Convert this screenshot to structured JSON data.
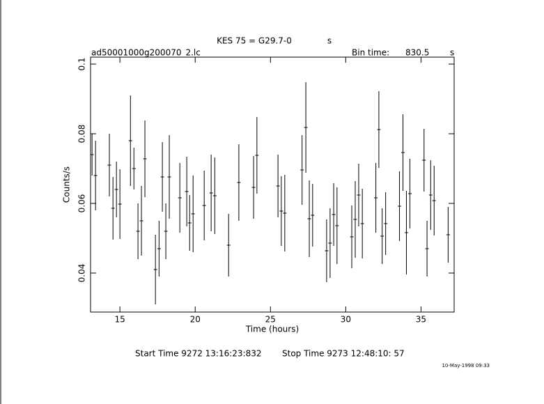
{
  "chart_data": {
    "type": "errorbar",
    "title": "KES 75 = G29.7-0",
    "title_suffix": "s",
    "file_name": "ad50001000g200070_2.lc",
    "bin_time_label": "Bin time:",
    "bin_time": 830.5,
    "bin_time_unit": "s",
    "xlabel": "Time (hours)",
    "ylabel": "Counts/s",
    "start_time": "Start Time  9272 13:16:23:832",
    "stop_time": "Stop Time  9273 12:48:10: 57",
    "date": "10-May-1998 09:33",
    "color": "#000000",
    "xlim": [
      13.05,
      37.2
    ],
    "ylim": [
      0.0288,
      0.102
    ],
    "xticks": [
      15,
      20,
      25,
      30,
      35
    ],
    "yticks": [
      0.04,
      0.06,
      0.08,
      0.1
    ],
    "x": [
      13.15,
      13.38,
      14.3,
      14.54,
      14.77,
      15.0,
      15.7,
      15.93,
      16.2,
      16.43,
      16.66,
      17.36,
      17.6,
      17.82,
      18.05,
      18.28,
      18.98,
      19.44,
      19.63,
      19.86,
      20.6,
      21.06,
      21.3,
      22.22,
      22.9,
      23.88,
      24.1,
      25.5,
      25.72,
      25.95,
      27.1,
      27.35,
      27.58,
      27.8,
      28.73,
      28.96,
      29.2,
      29.42,
      30.4,
      30.63,
      30.86,
      31.1,
      32.0,
      32.2,
      32.42,
      32.65,
      33.57,
      33.8,
      34.03,
      34.26,
      35.2,
      35.4,
      35.64,
      35.87,
      36.8
    ],
    "values": [
      0.074,
      0.068,
      0.071,
      0.0586,
      0.064,
      0.0598,
      0.078,
      0.07,
      0.052,
      0.055,
      0.0728,
      0.041,
      0.047,
      0.0676,
      0.052,
      0.0676,
      0.0616,
      0.0634,
      0.0544,
      0.057,
      0.0594,
      0.063,
      0.0622,
      0.048,
      0.066,
      0.0646,
      0.0738,
      0.065,
      0.0578,
      0.0572,
      0.0696,
      0.0818,
      0.0556,
      0.0566,
      0.0464,
      0.0486,
      0.0568,
      0.0536,
      0.0504,
      0.0554,
      0.0624,
      0.0542,
      0.0616,
      0.0812,
      0.0506,
      0.0542,
      0.0592,
      0.0746,
      0.0516,
      0.0628,
      0.0724,
      0.047,
      0.0624,
      0.0608,
      0.051
    ],
    "errors": [
      0.006,
      0.01,
      0.009,
      0.009,
      0.008,
      0.01,
      0.013,
      0.006,
      0.008,
      0.01,
      0.011,
      0.01,
      0.008,
      0.01,
      0.008,
      0.012,
      0.01,
      0.01,
      0.008,
      0.011,
      0.01,
      0.011,
      0.011,
      0.009,
      0.011,
      0.009,
      0.011,
      0.009,
      0.01,
      0.011,
      0.01,
      0.013,
      0.011,
      0.009,
      0.009,
      0.01,
      0.009,
      0.011,
      0.009,
      0.011,
      0.009,
      0.01,
      0.01,
      0.011,
      0.008,
      0.009,
      0.01,
      0.011,
      0.012,
      0.01,
      0.009,
      0.008,
      0.01,
      0.01,
      0.008
    ]
  }
}
